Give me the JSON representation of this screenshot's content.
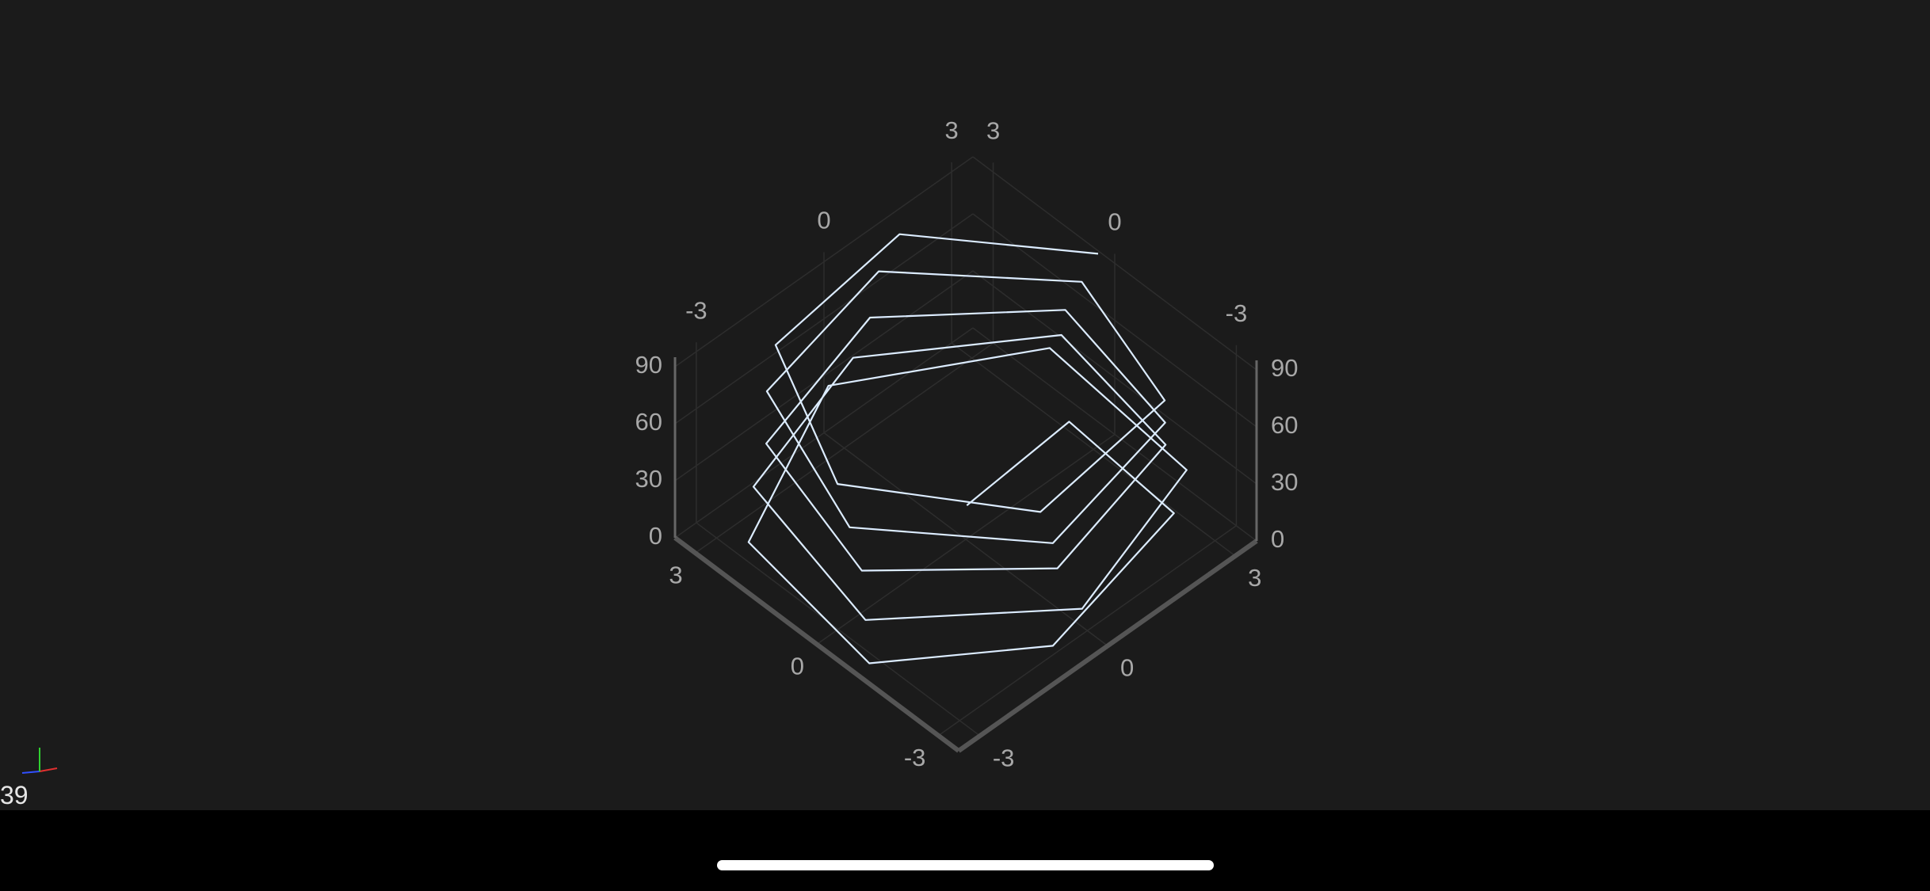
{
  "app": {
    "fps": "39",
    "colors": {
      "background": "#1b1b1b",
      "bottom_bar": "#000000",
      "line": "#dcecff",
      "axis": "#666666",
      "grid": "#2d2d2d",
      "tick_label": "#a8a8a8"
    },
    "gizmo": {
      "x_color": "#e03030",
      "y_color": "#30d030",
      "z_color": "#3050ff"
    }
  },
  "chart_data": {
    "type": "line",
    "projection": "3d",
    "series": [
      {
        "points": [
          [
            0.5,
            0.5,
            2
          ],
          [
            3.0,
            0.6,
            5
          ],
          [
            2.7,
            -2.3,
            8
          ],
          [
            -1.0,
            -3.2,
            11
          ],
          [
            -3.6,
            -1.4,
            14
          ],
          [
            -3.2,
            2.0,
            17
          ],
          [
            0.2,
            3.6,
            20
          ],
          [
            3.4,
            1.5,
            23
          ],
          [
            3.0,
            -2.3,
            26
          ],
          [
            -0.6,
            -3.5,
            29
          ],
          [
            -3.5,
            -1.2,
            32
          ],
          [
            -2.8,
            2.3,
            35
          ],
          [
            0.4,
            3.2,
            38
          ],
          [
            3.2,
            1.0,
            41
          ],
          [
            2.6,
            -2.2,
            44
          ],
          [
            -0.8,
            -3.1,
            47
          ],
          [
            -3.3,
            -0.9,
            50
          ],
          [
            -2.5,
            2.3,
            53
          ],
          [
            0.7,
            3.1,
            56
          ],
          [
            3.1,
            0.8,
            59
          ],
          [
            2.4,
            -2.4,
            62
          ],
          [
            -1.0,
            -3.2,
            65
          ],
          [
            -3.3,
            -0.6,
            68
          ],
          [
            -2.2,
            2.6,
            71
          ],
          [
            1.0,
            3.2,
            74
          ],
          [
            3.2,
            0.5,
            77
          ],
          [
            2.2,
            -2.6,
            80
          ],
          [
            -1.2,
            -3.1,
            83
          ],
          [
            -3.3,
            -0.3,
            86
          ],
          [
            -1.9,
            2.7,
            89
          ],
          [
            1.3,
            3.0,
            92
          ],
          [
            3.3,
            0.2,
            95
          ]
        ]
      }
    ],
    "axes": {
      "x": {
        "range": [
          -3.5,
          3.5
        ],
        "ticks": [
          "-3",
          "0",
          "3"
        ]
      },
      "y": {
        "range": [
          -3.5,
          3.5
        ],
        "ticks": [
          "-3",
          "0",
          "3"
        ]
      },
      "z": {
        "range": [
          0,
          95
        ],
        "ticks": [
          "0",
          "30",
          "60",
          "90"
        ]
      }
    },
    "grid": true,
    "legend": "none"
  }
}
